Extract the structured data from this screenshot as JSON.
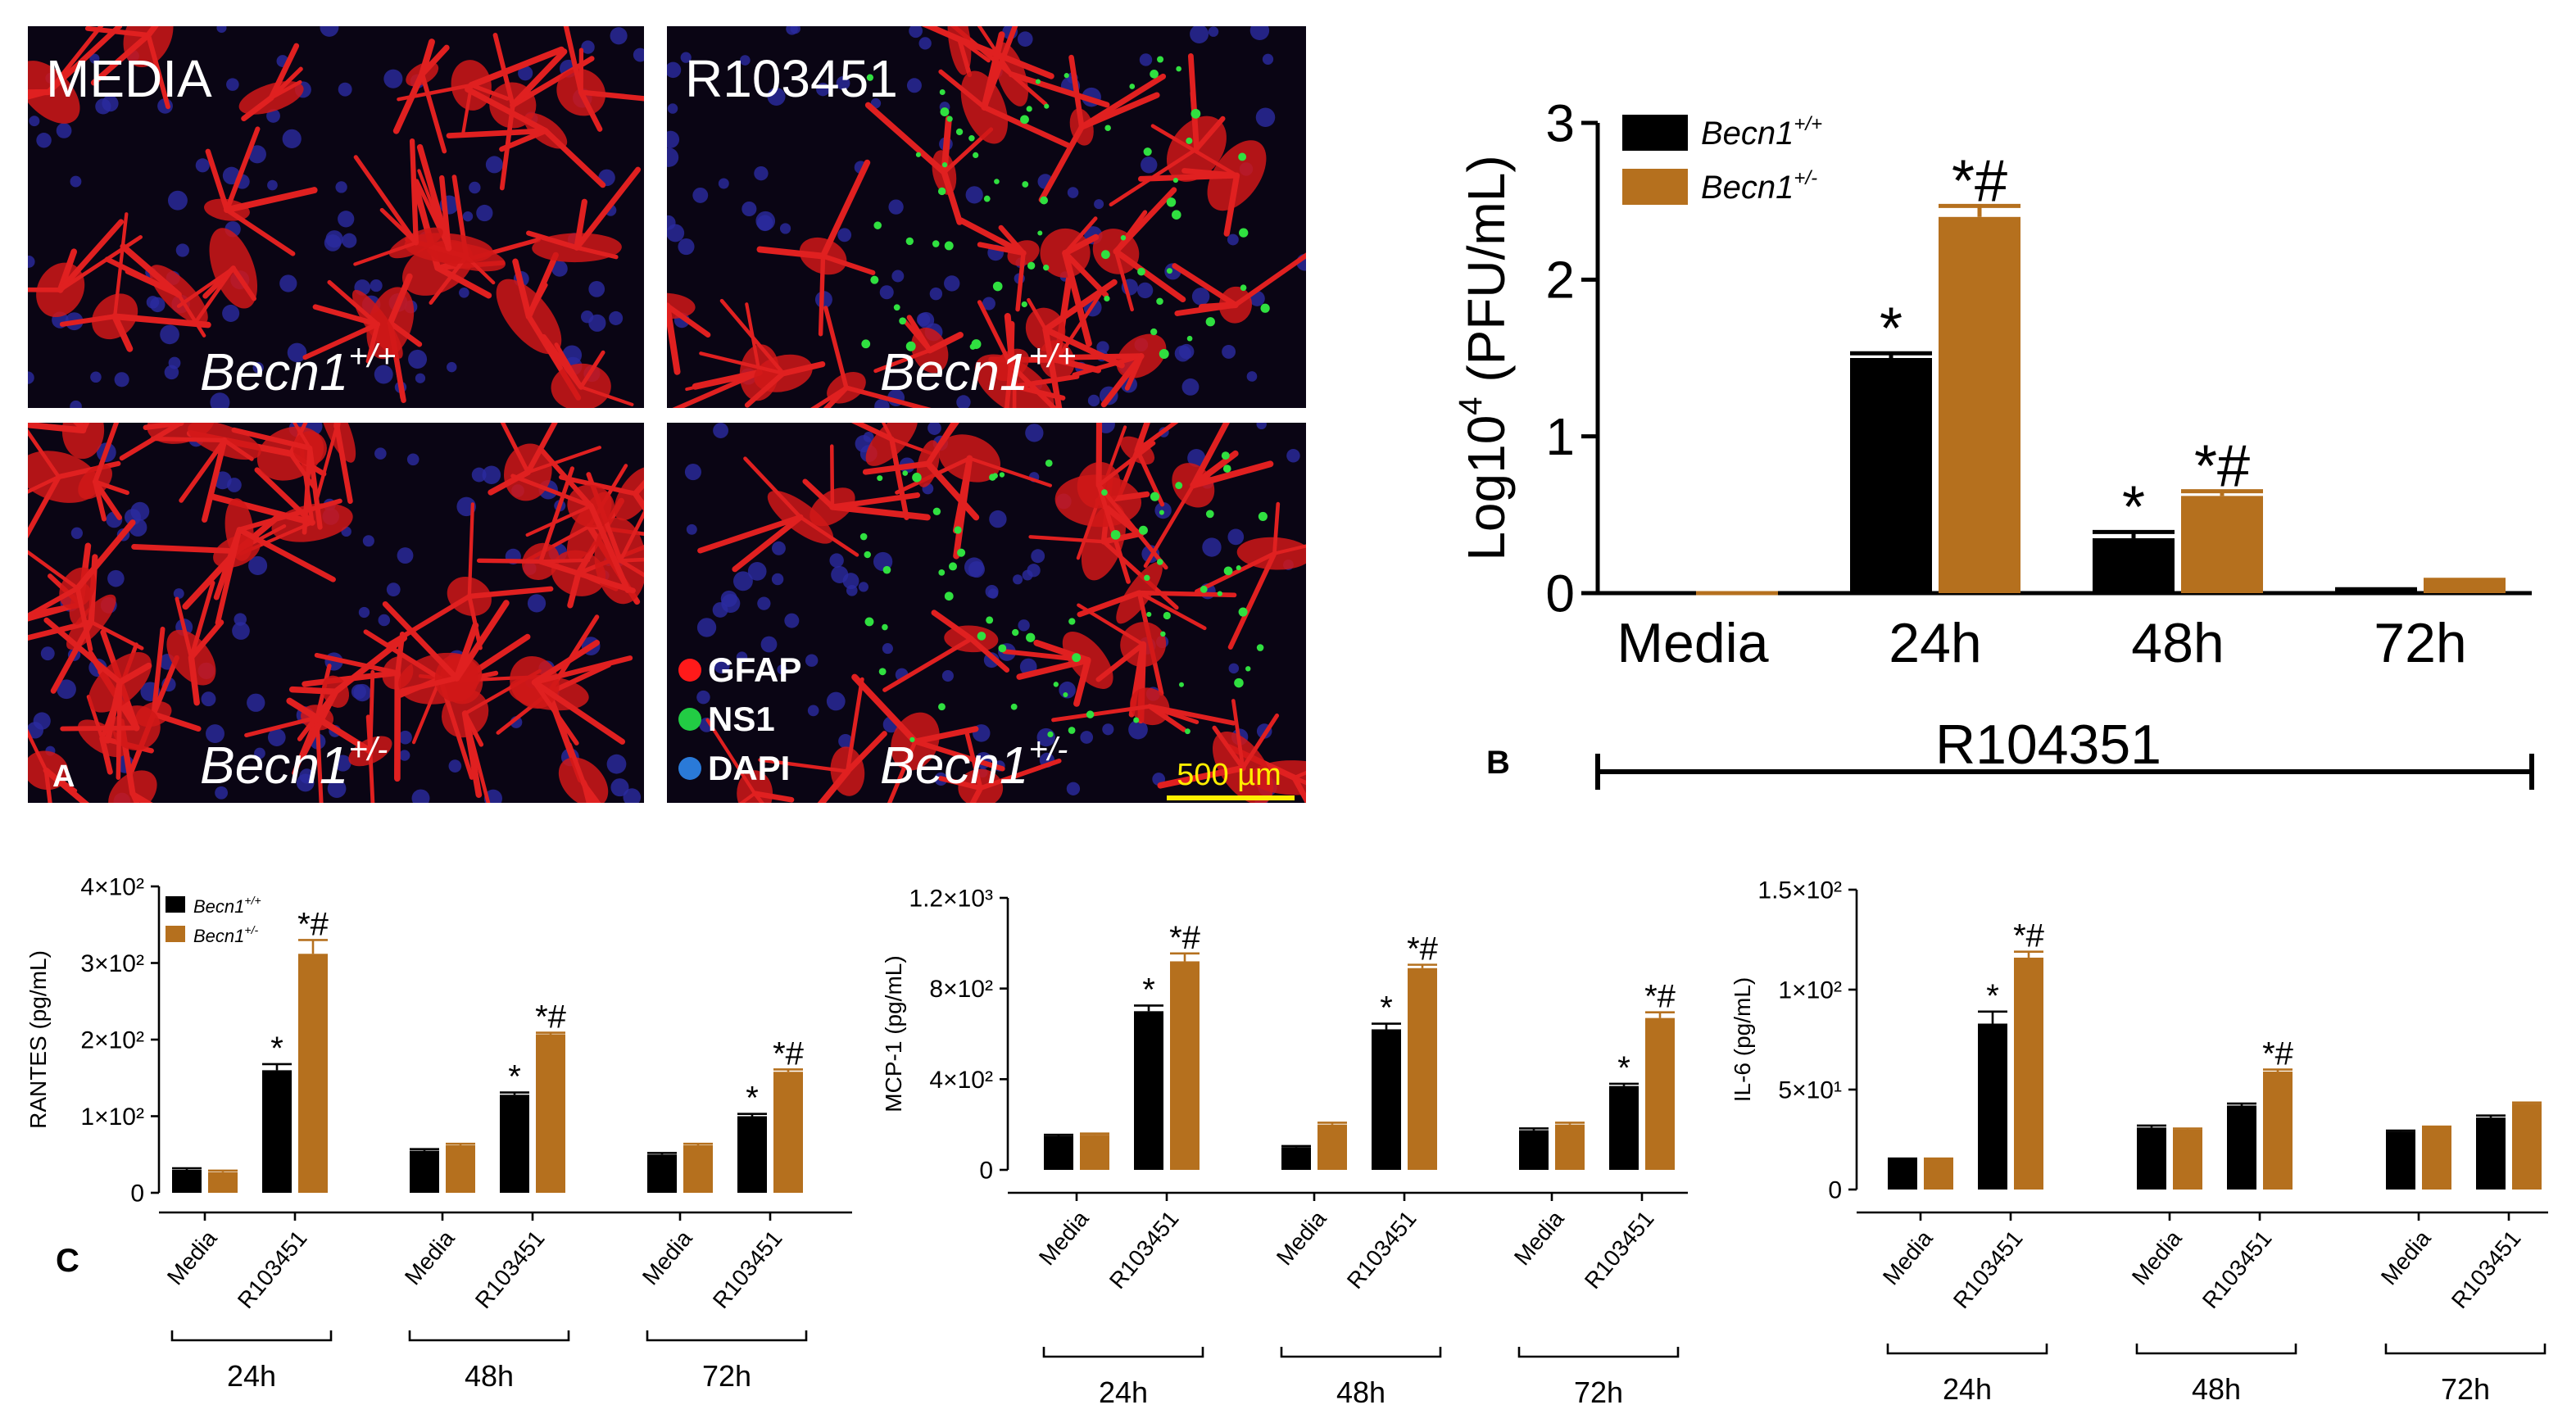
{
  "panel_a": {
    "label": "A",
    "images": [
      {
        "condition": "MEDIA",
        "genotype": {
          "base": "Becn1",
          "sup": "+/+"
        }
      },
      {
        "condition": "R103451",
        "genotype": {
          "base": "Becn1",
          "sup": "+/+"
        }
      },
      {
        "genotype": {
          "base": "Becn1",
          "sup": "+/-"
        }
      },
      {
        "genotype": {
          "base": "Becn1",
          "sup": "+/-"
        }
      }
    ],
    "stain_legend": [
      "GFAP",
      "NS1",
      "DAPI"
    ],
    "scale_bar": "500 µm"
  },
  "chart_data": [
    {
      "type": "bar",
      "panel_label": "B",
      "ylabel": {
        "base": "Log10",
        "sup": "4",
        "rest": " (PFU/mL)"
      },
      "categories": [
        "Media",
        "24h",
        "48h",
        "72h"
      ],
      "series": [
        {
          "name": {
            "base": "Becn1",
            "sup": "+/+"
          },
          "color": "#000000",
          "values": [
            0,
            1.5,
            0.35,
            0.02
          ],
          "errors": [
            0,
            0.03,
            0.04,
            0.005
          ],
          "annotations": [
            null,
            "*",
            "*",
            null
          ]
        },
        {
          "name": {
            "base": "Becn1",
            "sup": "+/-"
          },
          "color": "#b5701e",
          "values": [
            0,
            2.4,
            0.62,
            0.08
          ],
          "errors": [
            0,
            0.07,
            0.03,
            0.005
          ],
          "annotations": [
            null,
            "*#",
            "*#",
            null
          ]
        }
      ],
      "ylim": [
        0,
        3
      ],
      "yticks": [
        0,
        1,
        2,
        3
      ],
      "bracket_label": "R104351"
    },
    {
      "type": "bar",
      "panel_label": "C",
      "ylabel": "RANTES (pg/mL)",
      "categories": [
        "Media",
        "R103451",
        "Media",
        "R103451",
        "Media",
        "R103451"
      ],
      "groups": [
        "24h",
        "48h",
        "72h"
      ],
      "series": [
        {
          "name": {
            "base": "Becn1",
            "sup": "+/+"
          },
          "color": "#000000",
          "values": [
            30,
            160,
            55,
            128,
            50,
            100
          ],
          "errors": [
            2,
            8,
            2,
            3,
            2,
            3
          ],
          "annotations": [
            null,
            "*",
            null,
            "*",
            null,
            "*"
          ]
        },
        {
          "name": {
            "base": "Becn1",
            "sup": "+/-"
          },
          "color": "#b5701e",
          "values": [
            27,
            312,
            62,
            207,
            62,
            158
          ],
          "errors": [
            2,
            18,
            2,
            2,
            2,
            3
          ],
          "annotations": [
            null,
            "*#",
            null,
            "*#",
            null,
            "*#"
          ]
        }
      ],
      "ylim": [
        0,
        400
      ],
      "yticks": [
        0,
        {
          "value": 100,
          "label": "1×10²"
        },
        {
          "value": 200,
          "label": "2×10²"
        },
        {
          "value": 300,
          "label": "3×10²"
        },
        {
          "value": 400,
          "label": "4×10²"
        }
      ]
    },
    {
      "type": "bar",
      "ylabel": "MCP-1 (pg/mL)",
      "categories": [
        "Media",
        "R103451",
        "Media",
        "R103451",
        "Media",
        "R103451"
      ],
      "groups": [
        "24h",
        "48h",
        "72h"
      ],
      "series": [
        {
          "color": "#000000",
          "values": [
            150,
            700,
            100,
            620,
            175,
            370
          ],
          "errors": [
            5,
            25,
            5,
            25,
            8,
            10
          ],
          "annotations": [
            null,
            "*",
            null,
            "*",
            null,
            "*"
          ]
        },
        {
          "color": "#b5701e",
          "values": [
            155,
            920,
            200,
            890,
            200,
            670
          ],
          "errors": [
            5,
            35,
            8,
            15,
            8,
            25
          ],
          "annotations": [
            null,
            "*#",
            null,
            "*#",
            null,
            "*#"
          ]
        }
      ],
      "ylim": [
        0,
        1200
      ],
      "yticks": [
        0,
        {
          "value": 400,
          "label": "4×10²"
        },
        {
          "value": 800,
          "label": "8×10²"
        },
        {
          "value": 1200,
          "label": "1.2×10³"
        }
      ]
    },
    {
      "type": "bar",
      "ylabel": "IL-6 (pg/mL)",
      "categories": [
        "Media",
        "R103451",
        "Media",
        "R103451",
        "Media",
        "R103451"
      ],
      "groups": [
        "24h",
        "48h",
        "72h"
      ],
      "series": [
        {
          "color": "#000000",
          "values": [
            15,
            83,
            31,
            42,
            29,
            36
          ],
          "errors": [
            0.5,
            6,
            1,
            1,
            0.5,
            1
          ],
          "annotations": [
            null,
            "*",
            null,
            null,
            null,
            null
          ]
        },
        {
          "color": "#b5701e",
          "values": [
            15,
            116,
            30,
            59,
            31,
            43
          ],
          "errors": [
            0.5,
            3,
            0.5,
            1,
            0.5,
            0.5
          ],
          "annotations": [
            null,
            "*#",
            null,
            "*#",
            null,
            null
          ]
        }
      ],
      "ylim": [
        0,
        150
      ],
      "yticks": [
        0,
        {
          "value": 50,
          "label": "5×10¹"
        },
        {
          "value": 100,
          "label": "1×10²"
        },
        {
          "value": 150,
          "label": "1.5×10²"
        }
      ]
    }
  ]
}
